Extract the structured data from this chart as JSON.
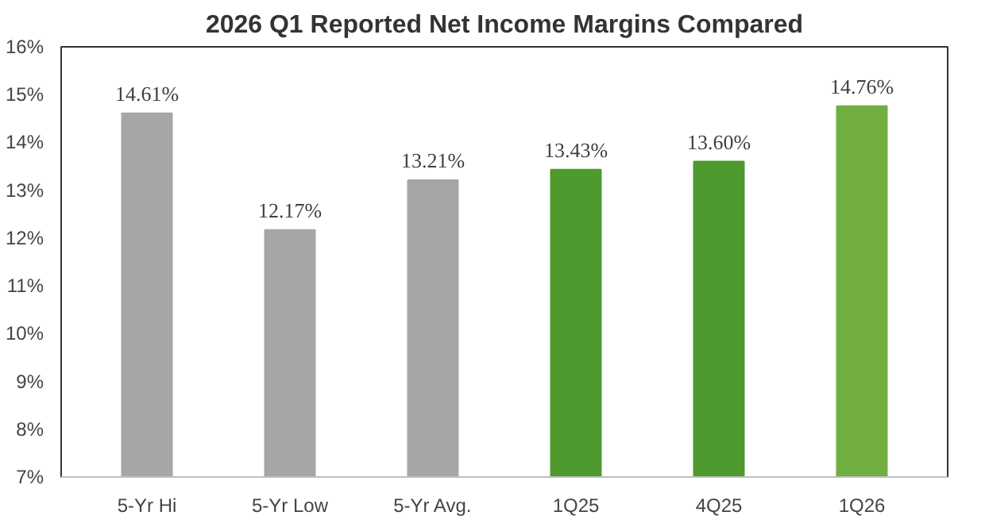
{
  "chart_data": {
    "type": "bar",
    "title": "2026 Q1 Reported Net Income Margins Compared",
    "categories": [
      "5-Yr Hi",
      "5-Yr Low",
      "5-Yr Avg.",
      "1Q25",
      "4Q25",
      "1Q26"
    ],
    "values": [
      14.61,
      12.17,
      13.21,
      13.43,
      13.6,
      14.76
    ],
    "colors": [
      "#a6a6a6",
      "#a6a6a6",
      "#a6a6a6",
      "#4e9a2e",
      "#4e9a2e",
      "#6fae3f"
    ],
    "value_labels": [
      "14.61%",
      "12.17%",
      "13.21%",
      "13.43%",
      "13.60%",
      "14.76%"
    ],
    "ylim": [
      7,
      16
    ],
    "yticks": [
      {
        "value": 7,
        "label": "7%"
      },
      {
        "value": 8,
        "label": "8%"
      },
      {
        "value": 9,
        "label": "9%"
      },
      {
        "value": 10,
        "label": "10%"
      },
      {
        "value": 11,
        "label": "11%"
      },
      {
        "value": 12,
        "label": "12%"
      },
      {
        "value": 13,
        "label": "13%"
      },
      {
        "value": 14,
        "label": "14%"
      },
      {
        "value": 15,
        "label": "15%"
      },
      {
        "value": 16,
        "label": "16%"
      }
    ]
  }
}
